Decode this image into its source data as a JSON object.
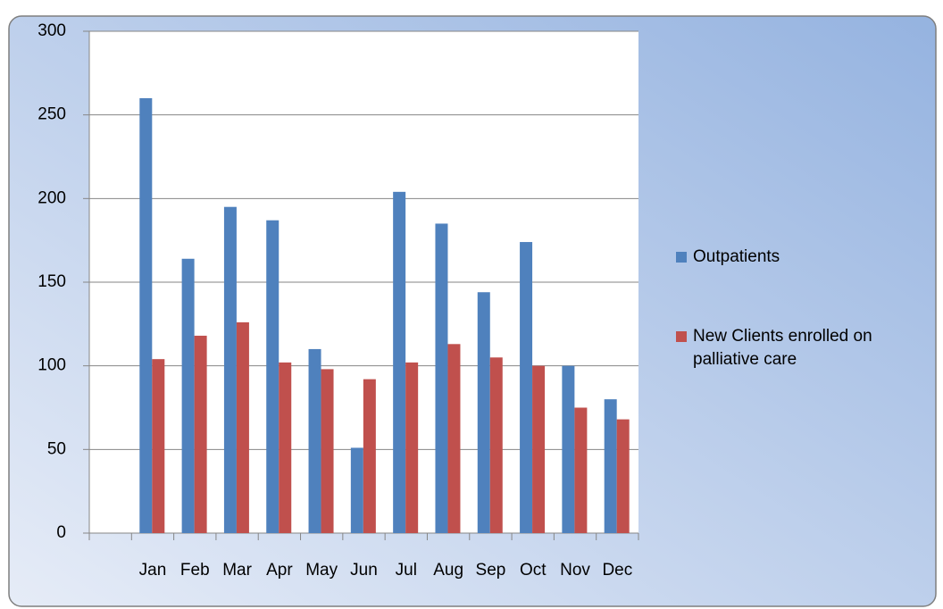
{
  "chart_data": {
    "type": "bar",
    "categories": [
      null,
      "Jan",
      "Feb",
      "Mar",
      "Apr",
      "May",
      "Jun",
      "Jul",
      "Aug",
      "Sep",
      "Oct",
      "Nov",
      "Dec"
    ],
    "series": [
      {
        "name": "Outpatients",
        "color": "#4f81bd",
        "values": [
          null,
          260,
          164,
          195,
          187,
          110,
          51,
          204,
          185,
          144,
          174,
          100,
          80
        ]
      },
      {
        "name": "New Clients enrolled on palliative care",
        "color": "#c0504d",
        "values": [
          null,
          104,
          118,
          126,
          102,
          98,
          92,
          102,
          113,
          105,
          100,
          75,
          68
        ]
      }
    ],
    "ylim": [
      0,
      300
    ],
    "yticks": [
      0,
      50,
      100,
      150,
      200,
      250,
      300
    ],
    "grid": true,
    "legend": "right"
  }
}
